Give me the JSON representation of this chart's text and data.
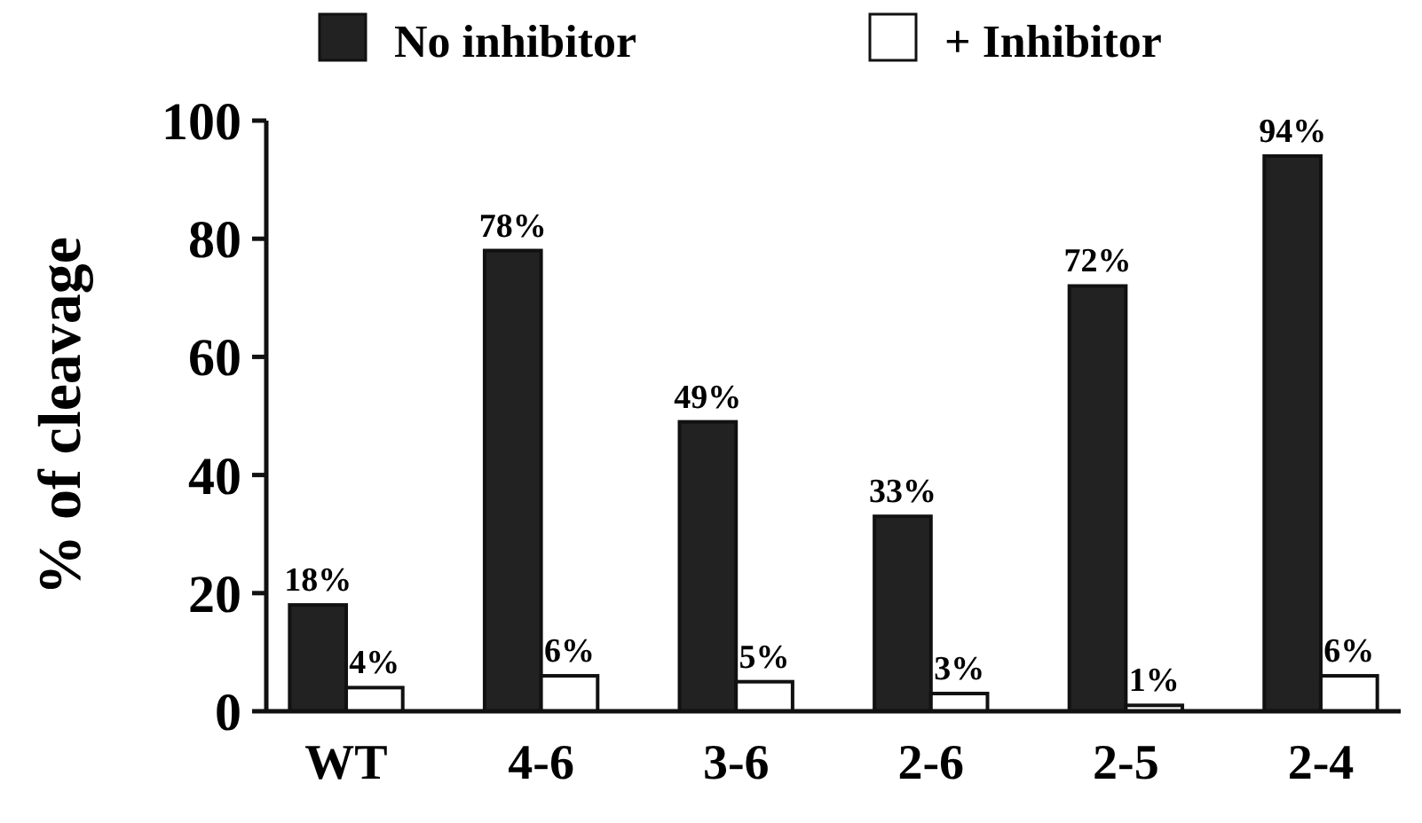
{
  "chart_data": {
    "type": "bar",
    "ylabel": "% of cleavage",
    "categories": [
      "WT",
      "4-6",
      "3-6",
      "2-6",
      "2-5",
      "2-4"
    ],
    "series": [
      {
        "name": "No inhibitor",
        "color": "#222222",
        "values": [
          18,
          78,
          49,
          33,
          72,
          94
        ],
        "value_labels": [
          "18%",
          "78%",
          "49%",
          "33%",
          "72%",
          "94%"
        ]
      },
      {
        "name": "+ Inhibitor",
        "color": "#ffffff",
        "values": [
          4,
          6,
          5,
          3,
          1,
          6
        ],
        "value_labels": [
          "4%",
          "6%",
          "5%",
          "3%",
          "1%",
          "6%"
        ]
      }
    ],
    "ylim": [
      0,
      100
    ],
    "yticks": [
      0,
      20,
      40,
      60,
      80,
      100
    ],
    "legend": "top",
    "grid": false
  }
}
